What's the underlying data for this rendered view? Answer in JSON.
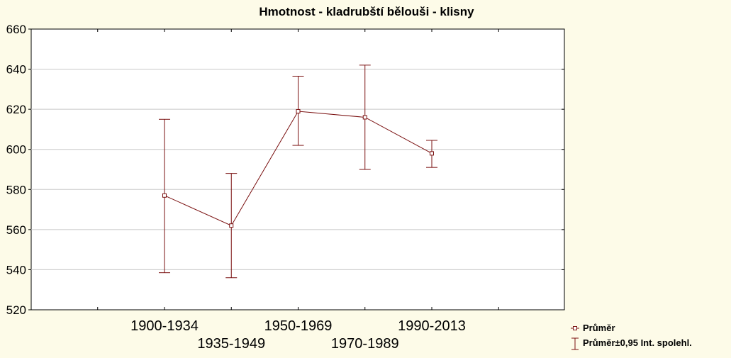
{
  "chart_data": {
    "type": "line",
    "title": "Hmotnost - kladrubští bělouši - klisny",
    "categories": [
      "1900-1934",
      "1935-1949",
      "1950-1969",
      "1970-1989",
      "1990-2013"
    ],
    "series": [
      {
        "name": "Průměr",
        "values": [
          577,
          562,
          619,
          616,
          598
        ],
        "lower": [
          538.5,
          536,
          602,
          590,
          591
        ],
        "upper": [
          615,
          588,
          636.5,
          642,
          604.5
        ]
      }
    ],
    "error_bar_label": "Průměr±0,95 Int. spolehl.",
    "ylim": [
      520,
      660
    ],
    "yticks": [
      "520",
      "540",
      "560",
      "580",
      "600",
      "620",
      "640",
      "660"
    ],
    "grid": true,
    "legend_position": "bottom-right",
    "colors": {
      "series": "#7a1010",
      "background": "#fdfbe8",
      "plot_background": "#ffffff",
      "grid": "#c8c8c8"
    }
  }
}
